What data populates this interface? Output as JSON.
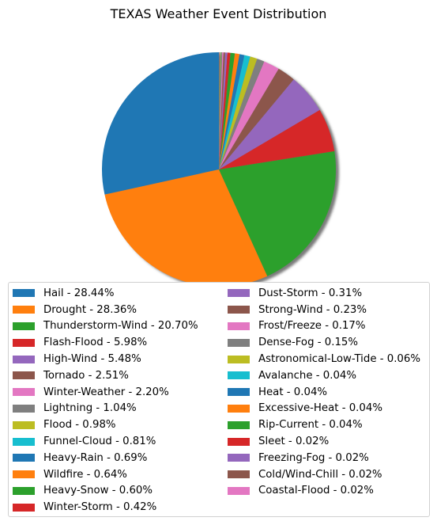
{
  "chart_data": {
    "type": "pie",
    "title": "TEXAS Weather Event Distribution",
    "shadow": true,
    "start_angle_deg": 90,
    "direction": "counterclockwise",
    "legend_placement": "bottom",
    "legend_columns": 2,
    "slices": [
      {
        "label": "Hail - 28.44%",
        "value": 28.44,
        "color": "#1f77b4"
      },
      {
        "label": "Drought - 28.36%",
        "value": 28.36,
        "color": "#ff7f0e"
      },
      {
        "label": "Thunderstorm-Wind - 20.70%",
        "value": 20.7,
        "color": "#2ca02c"
      },
      {
        "label": "Flash-Flood - 5.98%",
        "value": 5.98,
        "color": "#d62728"
      },
      {
        "label": "High-Wind - 5.48%",
        "value": 5.48,
        "color": "#9467bd"
      },
      {
        "label": "Tornado - 2.51%",
        "value": 2.51,
        "color": "#8c564b"
      },
      {
        "label": "Winter-Weather - 2.20%",
        "value": 2.2,
        "color": "#e377c2"
      },
      {
        "label": "Lightning - 1.04%",
        "value": 1.04,
        "color": "#7f7f7f"
      },
      {
        "label": "Flood - 0.98%",
        "value": 0.98,
        "color": "#bcbd22"
      },
      {
        "label": "Funnel-Cloud - 0.81%",
        "value": 0.81,
        "color": "#17becf"
      },
      {
        "label": "Heavy-Rain - 0.69%",
        "value": 0.69,
        "color": "#1f77b4"
      },
      {
        "label": "Wildfire - 0.64%",
        "value": 0.64,
        "color": "#ff7f0e"
      },
      {
        "label": "Heavy-Snow - 0.60%",
        "value": 0.6,
        "color": "#2ca02c"
      },
      {
        "label": "Winter-Storm - 0.42%",
        "value": 0.42,
        "color": "#d62728"
      },
      {
        "label": "Dust-Storm - 0.31%",
        "value": 0.31,
        "color": "#9467bd"
      },
      {
        "label": "Strong-Wind - 0.23%",
        "value": 0.23,
        "color": "#8c564b"
      },
      {
        "label": "Frost/Freeze - 0.17%",
        "value": 0.17,
        "color": "#e377c2"
      },
      {
        "label": "Dense-Fog - 0.15%",
        "value": 0.15,
        "color": "#7f7f7f"
      },
      {
        "label": "Astronomical-Low-Tide - 0.06%",
        "value": 0.06,
        "color": "#bcbd22"
      },
      {
        "label": "Avalanche - 0.04%",
        "value": 0.04,
        "color": "#17becf"
      },
      {
        "label": "Heat - 0.04%",
        "value": 0.04,
        "color": "#1f77b4"
      },
      {
        "label": "Excessive-Heat - 0.04%",
        "value": 0.04,
        "color": "#ff7f0e"
      },
      {
        "label": "Rip-Current - 0.04%",
        "value": 0.04,
        "color": "#2ca02c"
      },
      {
        "label": "Sleet - 0.02%",
        "value": 0.02,
        "color": "#d62728"
      },
      {
        "label": "Freezing-Fog - 0.02%",
        "value": 0.02,
        "color": "#9467bd"
      },
      {
        "label": "Cold/Wind-Chill - 0.02%",
        "value": 0.02,
        "color": "#8c564b"
      },
      {
        "label": "Coastal-Flood - 0.02%",
        "value": 0.02,
        "color": "#e377c2"
      }
    ]
  }
}
